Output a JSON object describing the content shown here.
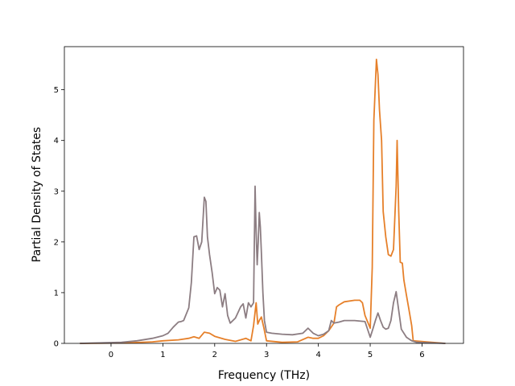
{
  "chart_data": {
    "type": "line",
    "title": "",
    "xlabel": "Frequency (THz)",
    "ylabel": "Partial Density of States",
    "xlim": [
      -0.9,
      6.8
    ],
    "ylim": [
      0,
      5.85
    ],
    "xticks": [
      0,
      1,
      2,
      3,
      4,
      5,
      6
    ],
    "yticks": [
      0,
      1,
      2,
      3,
      4,
      5
    ],
    "grid": false,
    "legend": "none",
    "series": [
      {
        "color": "#e6802a",
        "x": [
          -0.6,
          0.3,
          0.8,
          1.0,
          1.3,
          1.5,
          1.6,
          1.7,
          1.8,
          1.9,
          2.0,
          2.2,
          2.4,
          2.6,
          2.7,
          2.75,
          2.8,
          2.83,
          2.86,
          2.9,
          2.95,
          3.0,
          3.3,
          3.6,
          3.8,
          3.9,
          4.0,
          4.1,
          4.2,
          4.3,
          4.35,
          4.4,
          4.5,
          4.7,
          4.8,
          4.85,
          4.9,
          5.0,
          5.04,
          5.07,
          5.12,
          5.15,
          5.18,
          5.22,
          5.25,
          5.3,
          5.35,
          5.4,
          5.45,
          5.5,
          5.52,
          5.55,
          5.58,
          5.62,
          5.65,
          5.7,
          5.75,
          5.8,
          5.83,
          6.45
        ],
        "y": [
          0,
          0.01,
          0.03,
          0.05,
          0.07,
          0.1,
          0.13,
          0.1,
          0.22,
          0.2,
          0.14,
          0.08,
          0.04,
          0.1,
          0.05,
          0.35,
          0.8,
          0.38,
          0.45,
          0.52,
          0.3,
          0.05,
          0.02,
          0.03,
          0.12,
          0.1,
          0.1,
          0.15,
          0.25,
          0.4,
          0.72,
          0.76,
          0.82,
          0.85,
          0.85,
          0.8,
          0.55,
          0.3,
          1.5,
          4.4,
          5.6,
          5.3,
          4.6,
          4.0,
          2.6,
          2.1,
          1.75,
          1.72,
          1.85,
          3.1,
          4.0,
          2.6,
          1.6,
          1.58,
          1.25,
          0.95,
          0.65,
          0.35,
          0.05,
          0.0
        ]
      },
      {
        "color": "#8c7d82",
        "x": [
          -0.6,
          0.2,
          0.5,
          0.8,
          1.0,
          1.1,
          1.2,
          1.3,
          1.35,
          1.4,
          1.5,
          1.55,
          1.6,
          1.65,
          1.7,
          1.75,
          1.8,
          1.83,
          1.86,
          1.9,
          1.95,
          2.0,
          2.05,
          2.1,
          2.15,
          2.2,
          2.25,
          2.3,
          2.4,
          2.5,
          2.55,
          2.6,
          2.65,
          2.7,
          2.75,
          2.78,
          2.8,
          2.82,
          2.84,
          2.86,
          2.88,
          2.9,
          2.93,
          2.96,
          3.0,
          3.1,
          3.3,
          3.5,
          3.7,
          3.8,
          3.9,
          4.0,
          4.1,
          4.2,
          4.25,
          4.3,
          4.4,
          4.5,
          4.7,
          4.9,
          5.0,
          5.05,
          5.1,
          5.15,
          5.2,
          5.25,
          5.3,
          5.35,
          5.4,
          5.45,
          5.5,
          5.55,
          5.6,
          5.7,
          5.8,
          5.9,
          6.45
        ],
        "y": [
          0,
          0.02,
          0.05,
          0.1,
          0.15,
          0.2,
          0.32,
          0.42,
          0.43,
          0.45,
          0.7,
          1.2,
          2.1,
          2.12,
          1.85,
          2.0,
          2.88,
          2.8,
          2.1,
          1.75,
          1.4,
          0.98,
          1.1,
          1.05,
          0.72,
          0.98,
          0.55,
          0.4,
          0.5,
          0.72,
          0.78,
          0.5,
          0.8,
          0.72,
          0.8,
          3.1,
          2.2,
          1.55,
          2.0,
          2.58,
          2.3,
          1.8,
          1.0,
          0.45,
          0.22,
          0.2,
          0.18,
          0.17,
          0.2,
          0.3,
          0.2,
          0.15,
          0.18,
          0.25,
          0.45,
          0.4,
          0.42,
          0.45,
          0.45,
          0.43,
          0.12,
          0.28,
          0.45,
          0.6,
          0.45,
          0.32,
          0.28,
          0.3,
          0.45,
          0.8,
          1.02,
          0.65,
          0.28,
          0.12,
          0.05,
          0.02,
          0.0
        ]
      }
    ]
  }
}
